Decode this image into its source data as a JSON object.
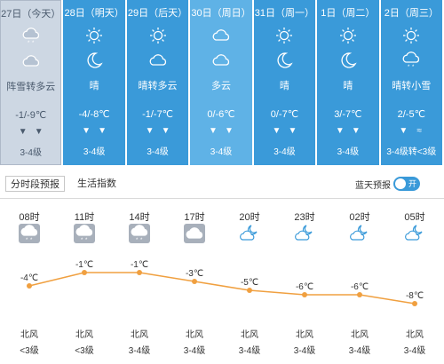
{
  "days": [
    {
      "date": "27日",
      "label": "今天",
      "desc": "阵雪转多云",
      "temp": "-1/-9℃",
      "level": "3-4级",
      "icon1": "snow-cloud-icon",
      "icon2": "cloud-icon",
      "wind": [
        "arrow",
        "arrow"
      ],
      "bg": "#cdd7e3"
    },
    {
      "date": "28日",
      "label": "明天",
      "desc": "晴",
      "temp": "-4/-8℃",
      "level": "3-4级",
      "icon1": "sun-icon",
      "icon2": "moon-icon",
      "wind": [
        "arrow",
        "arrow"
      ],
      "bg": "#3a9ad9"
    },
    {
      "date": "29日",
      "label": "后天",
      "desc": "晴转多云",
      "temp": "-1/-7℃",
      "level": "3-4级",
      "icon1": "sun-icon",
      "icon2": "cloud-icon",
      "wind": [
        "arrow",
        "arrow"
      ],
      "bg": "#3a9ad9"
    },
    {
      "date": "30日",
      "label": "周日",
      "desc": "多云",
      "temp": "0/-6℃",
      "level": "3-4级",
      "icon1": "cloud-icon",
      "icon2": "cloud-icon",
      "wind": [
        "arrow",
        "arrow"
      ],
      "bg": "#5fb2e6"
    },
    {
      "date": "31日",
      "label": "周一",
      "desc": "晴",
      "temp": "0/-7℃",
      "level": "3-4级",
      "icon1": "sun-icon",
      "icon2": "moon-icon",
      "wind": [
        "arrow",
        "arrow"
      ],
      "bg": "#3a9ad9"
    },
    {
      "date": "1日",
      "label": "周二",
      "desc": "晴",
      "temp": "3/-7℃",
      "level": "3-4级",
      "icon1": "sun-icon",
      "icon2": "moon-icon",
      "wind": [
        "arrow",
        "arrow"
      ],
      "bg": "#3a9ad9"
    },
    {
      "date": "2日",
      "label": "周三",
      "desc": "晴转小雪",
      "temp": "2/-5℃",
      "level": "3-4级转<3级",
      "icon1": "sun-icon",
      "icon2": "snow-cloud-icon",
      "wind": [
        "arrow",
        "≈"
      ],
      "bg": "#3a9ad9"
    }
  ],
  "tabs": {
    "hourly": "分时段预报",
    "index": "生活指数",
    "blue_sky": "蓝天预报",
    "toggle": "开"
  },
  "hourly": [
    {
      "time": "08时",
      "temp": -4,
      "temp_label": "-4℃",
      "wind": "北风",
      "level": "<3级",
      "icon": "snow-cloud-icon"
    },
    {
      "time": "11时",
      "temp": -1,
      "temp_label": "-1℃",
      "wind": "北风",
      "level": "<3级",
      "icon": "snow-cloud-icon"
    },
    {
      "time": "14时",
      "temp": -1,
      "temp_label": "-1℃",
      "wind": "北风",
      "level": "3-4级",
      "icon": "snow-cloud-icon"
    },
    {
      "time": "17时",
      "temp": -3,
      "temp_label": "-3℃",
      "wind": "北风",
      "level": "3-4级",
      "icon": "cloud-icon"
    },
    {
      "time": "20时",
      "temp": -5,
      "temp_label": "-5℃",
      "wind": "北风",
      "level": "3-4级",
      "icon": "moon-cloud-icon"
    },
    {
      "time": "23时",
      "temp": -6,
      "temp_label": "-6℃",
      "wind": "北风",
      "level": "3-4级",
      "icon": "moon-cloud-icon"
    },
    {
      "time": "02时",
      "temp": -6,
      "temp_label": "-6℃",
      "wind": "北风",
      "level": "3-4级",
      "icon": "moon-cloud-icon"
    },
    {
      "time": "05时",
      "temp": -8,
      "temp_label": "-8℃",
      "wind": "北风",
      "level": "3-4级",
      "icon": "moon-cloud-icon"
    }
  ],
  "colors": {
    "line": "#f0a040",
    "icon_blue": "#3a9ad9",
    "tile_gray": "#a8b0bb"
  }
}
